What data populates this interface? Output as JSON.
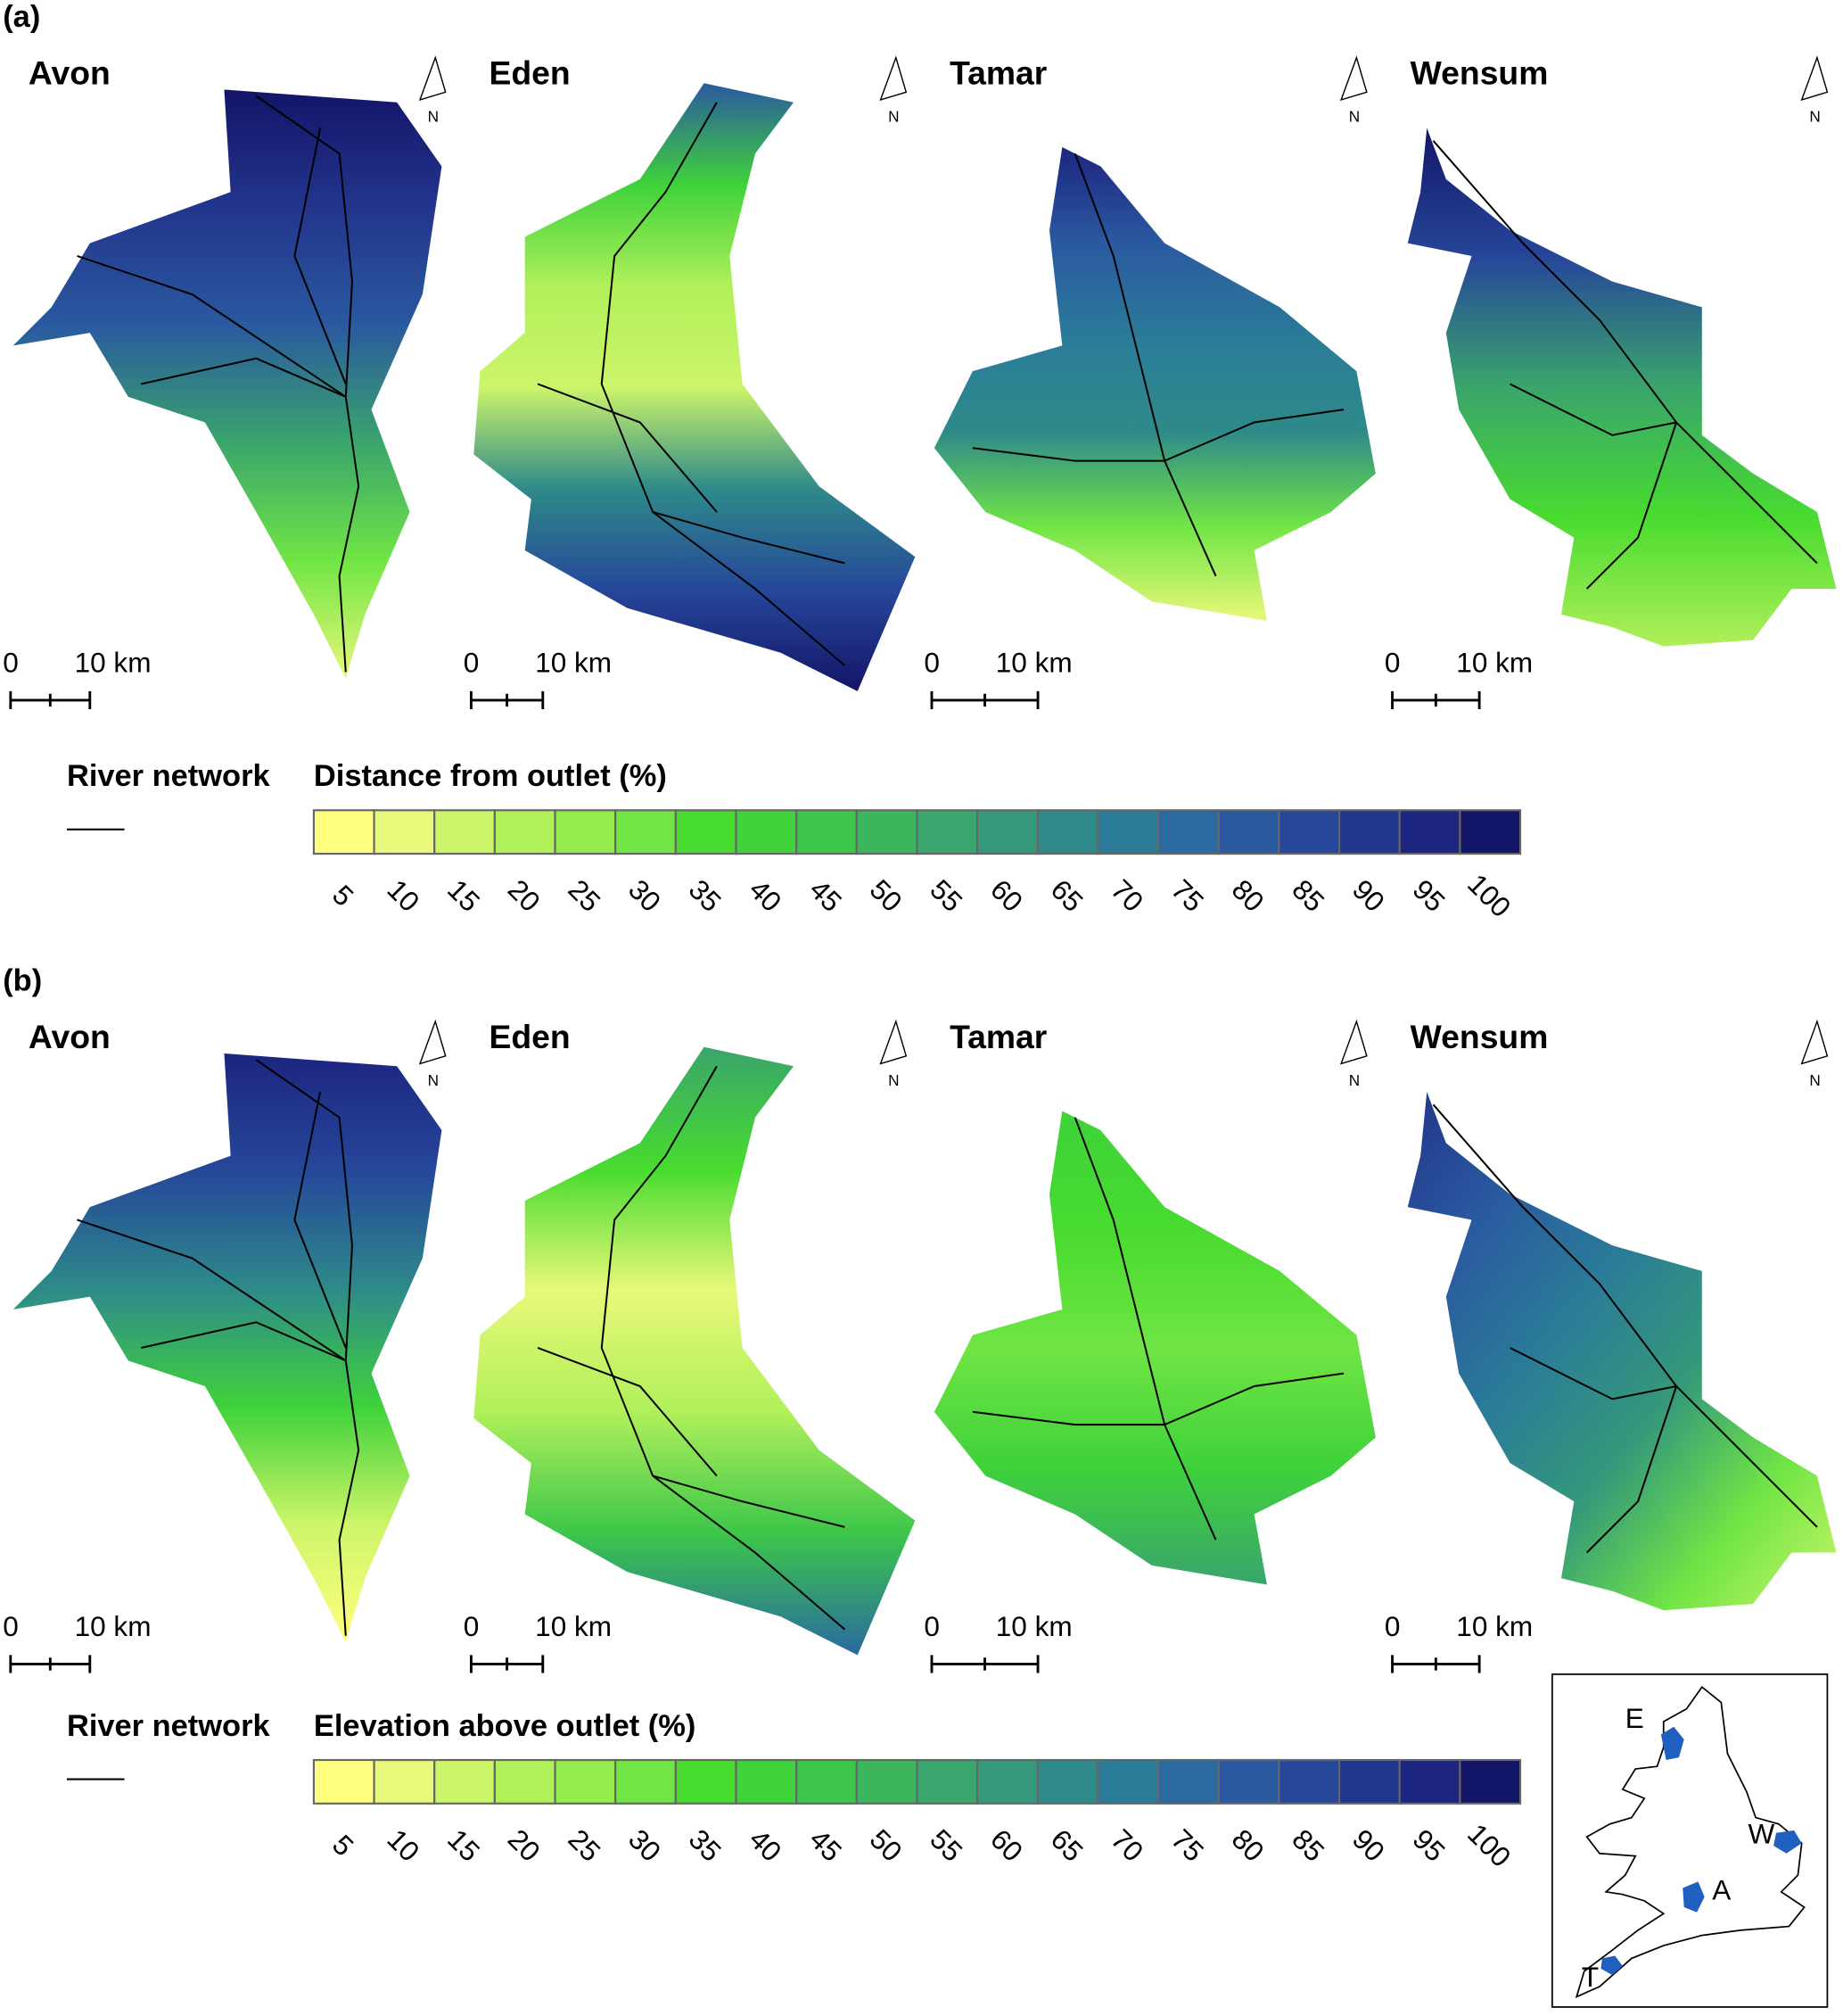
{
  "panels": [
    {
      "label": "(a)",
      "catchments": [
        {
          "name": "Avon",
          "scale_zero": "0",
          "scale_length": "10 km",
          "north": "N"
        },
        {
          "name": "Eden",
          "scale_zero": "0",
          "scale_length": "10 km",
          "north": "N"
        },
        {
          "name": "Tamar",
          "scale_zero": "0",
          "scale_length": "10 km",
          "north": "N"
        },
        {
          "name": "Wensum",
          "scale_zero": "0",
          "scale_length": "10 km",
          "north": "N"
        }
      ],
      "legend": {
        "line_label": "River network",
        "title": "Distance from outlet (%)",
        "ticks": [
          5,
          10,
          15,
          20,
          25,
          30,
          35,
          40,
          45,
          50,
          55,
          60,
          65,
          70,
          75,
          80,
          85,
          90,
          95,
          100
        ]
      }
    },
    {
      "label": "(b)",
      "catchments": [
        {
          "name": "Avon",
          "scale_zero": "0",
          "scale_length": "10 km",
          "north": "N"
        },
        {
          "name": "Eden",
          "scale_zero": "0",
          "scale_length": "10 km",
          "north": "N"
        },
        {
          "name": "Tamar",
          "scale_zero": "0",
          "scale_length": "10 km",
          "north": "N"
        },
        {
          "name": "Wensum",
          "scale_zero": "0",
          "scale_length": "10 km",
          "north": "N"
        }
      ],
      "legend": {
        "line_label": "River network",
        "title": "Elevation above outlet (%)",
        "ticks": [
          5,
          10,
          15,
          20,
          25,
          30,
          35,
          40,
          45,
          50,
          55,
          60,
          65,
          70,
          75,
          80,
          85,
          90,
          95,
          100
        ]
      }
    }
  ],
  "legend_colors": [
    "#ffff80",
    "#e8f87a",
    "#cdf56a",
    "#b0f05a",
    "#93eb4d",
    "#70e545",
    "#48db2f",
    "#3fd23a",
    "#3cc64a",
    "#3cb55c",
    "#3aa56c",
    "#35987a",
    "#2e8a8a",
    "#2a7b98",
    "#2a6aa0",
    "#2a59a0",
    "#26479a",
    "#22358c",
    "#1c2580",
    "#131568"
  ],
  "inset": {
    "labels": [
      "E",
      "W",
      "A",
      "T"
    ]
  }
}
